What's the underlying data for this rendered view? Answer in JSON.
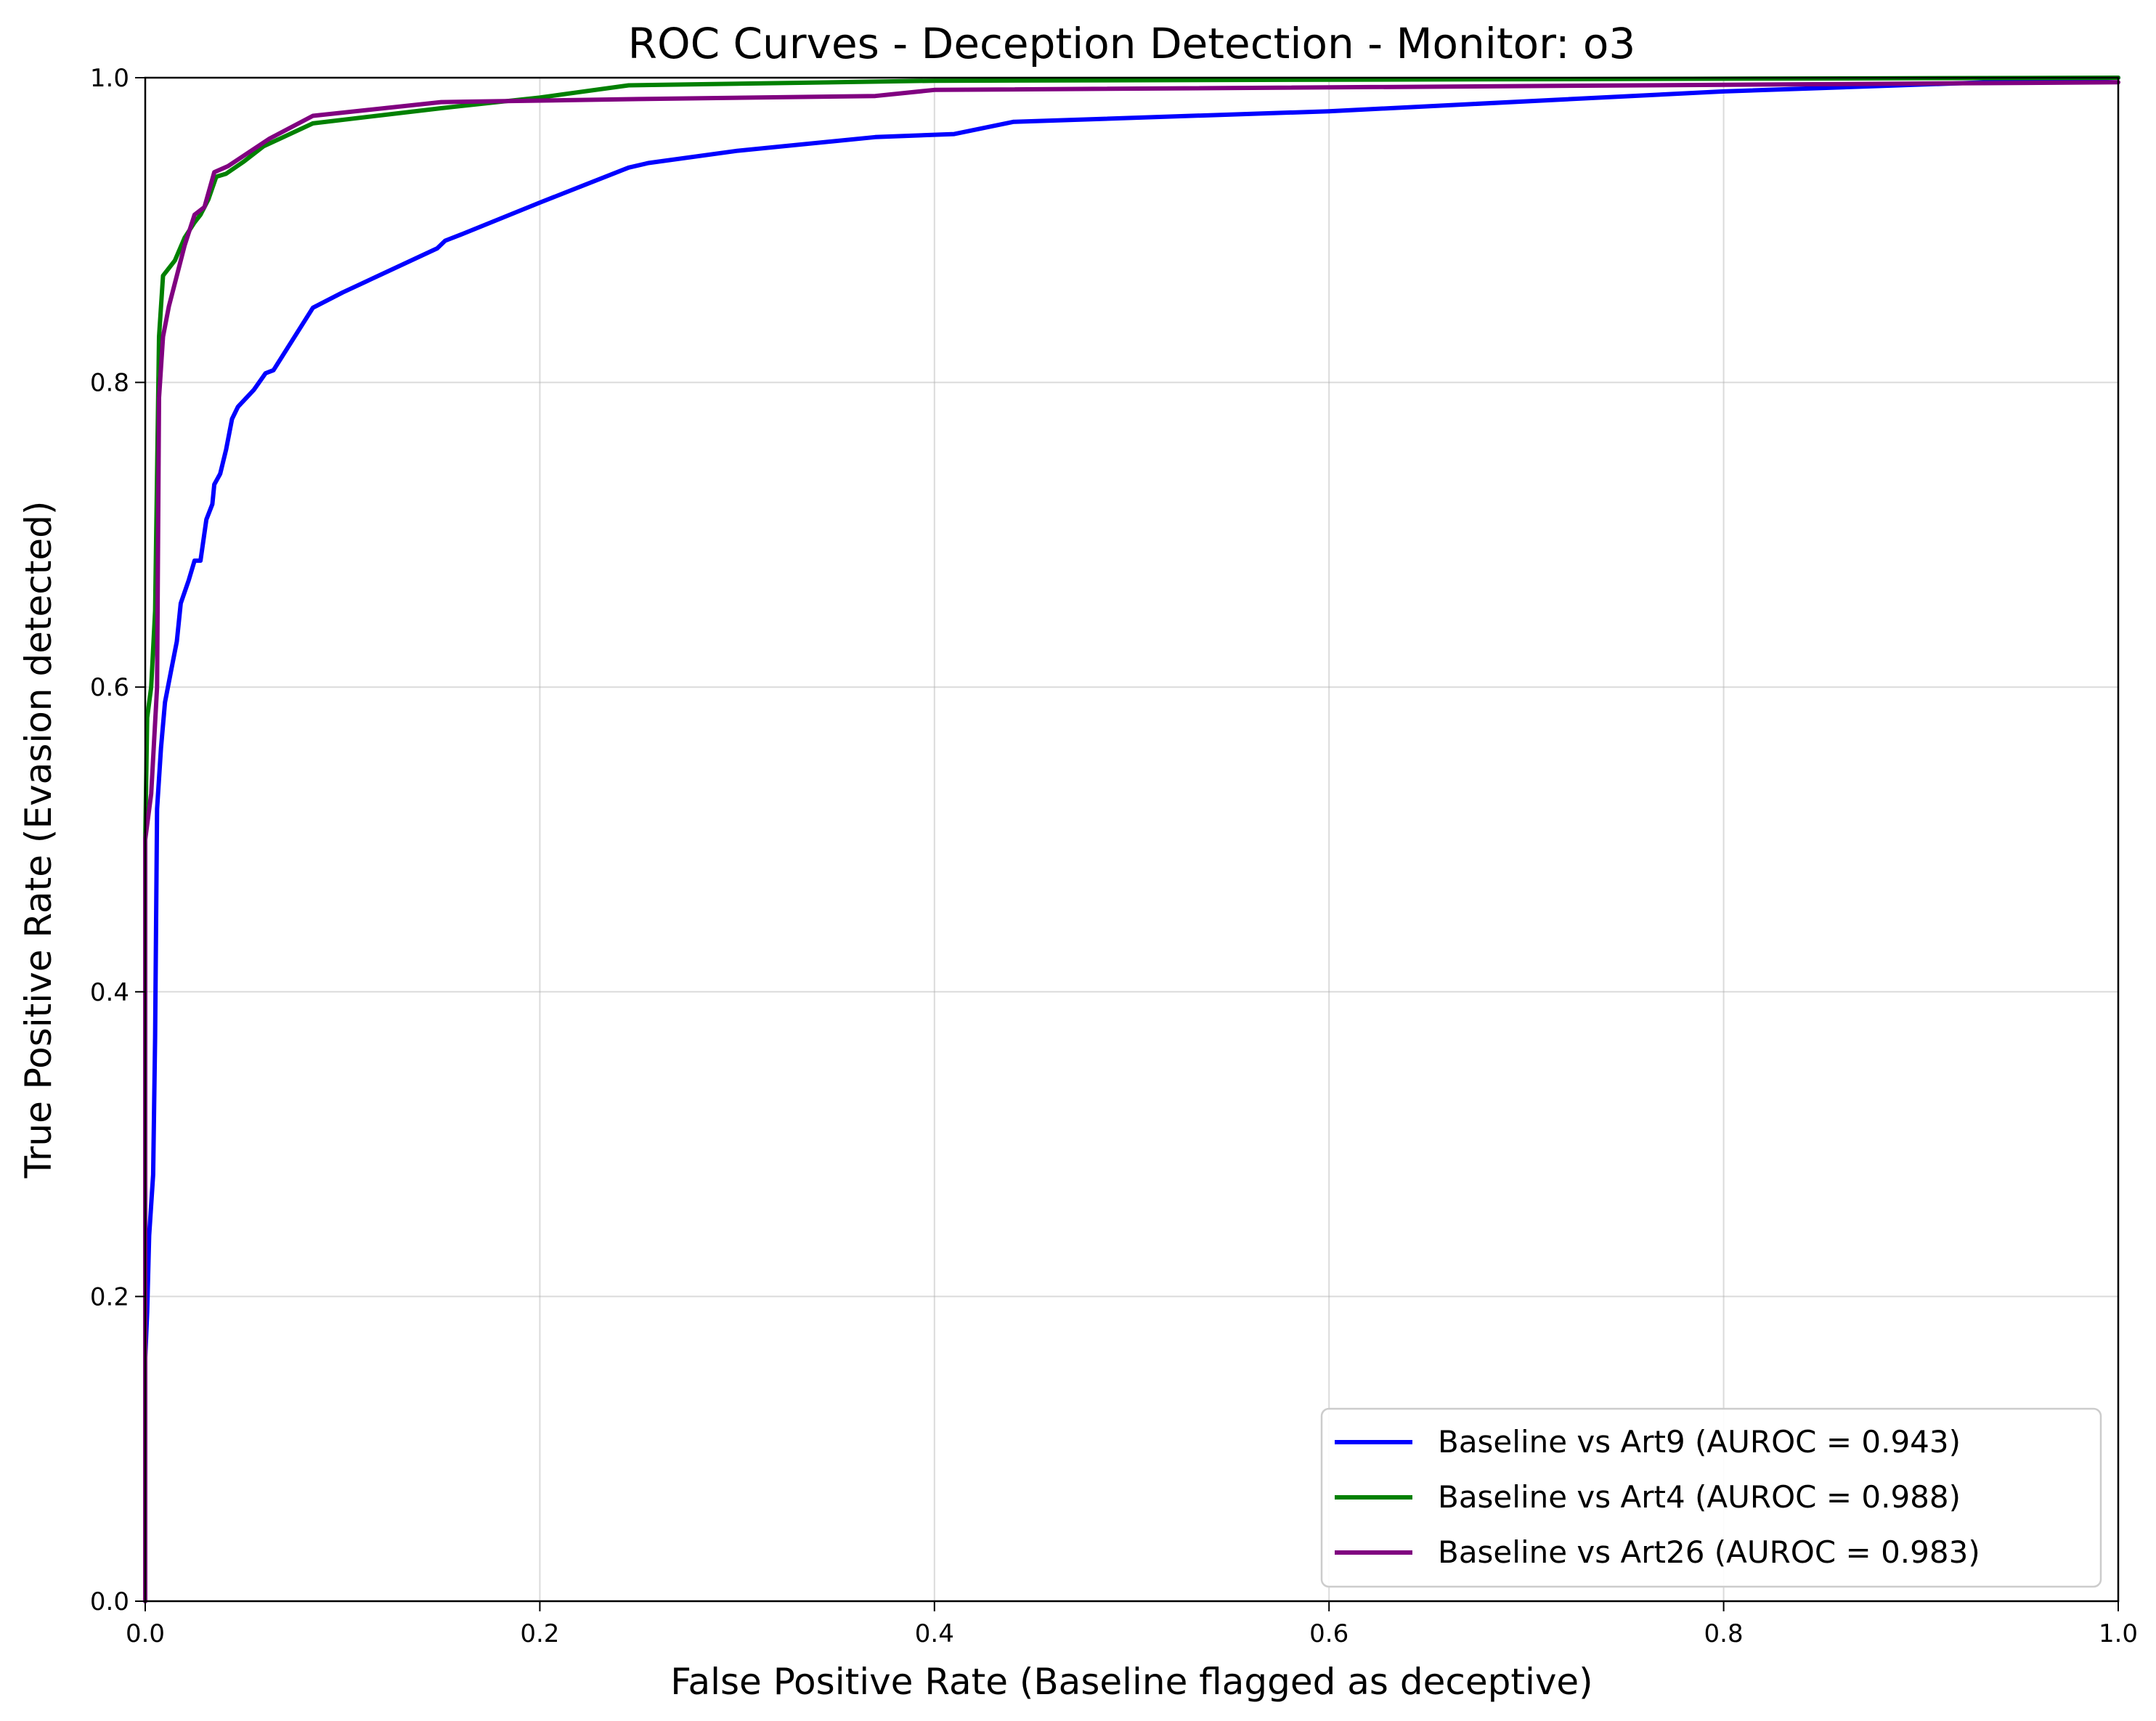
{
  "chart_data": {
    "type": "line",
    "title": "ROC Curves - Deception Detection - Monitor: o3",
    "xlabel": "False Positive Rate (Baseline flagged as deceptive)",
    "ylabel": "True Positive Rate (Evasion detected)",
    "xlim": [
      0,
      1
    ],
    "ylim": [
      0,
      1
    ],
    "x_ticks": [
      "0.0",
      "0.2",
      "0.4",
      "0.6",
      "0.8",
      "1.0"
    ],
    "y_ticks": [
      "0.0",
      "0.2",
      "0.4",
      "0.6",
      "0.8",
      "1.0"
    ],
    "grid": true,
    "legend_position": "lower-right",
    "series": [
      {
        "name": "Baseline vs Art9 (AUROC = 0.943)",
        "color": "#0000ff",
        "points": [
          [
            0.0,
            0.0
          ],
          [
            0.0,
            0.16
          ],
          [
            0.001,
            0.19
          ],
          [
            0.002,
            0.24
          ],
          [
            0.004,
            0.28
          ],
          [
            0.005,
            0.37
          ],
          [
            0.006,
            0.52
          ],
          [
            0.008,
            0.56
          ],
          [
            0.01,
            0.59
          ],
          [
            0.013,
            0.61
          ],
          [
            0.016,
            0.63
          ],
          [
            0.018,
            0.655
          ],
          [
            0.022,
            0.67
          ],
          [
            0.025,
            0.683
          ],
          [
            0.028,
            0.683
          ],
          [
            0.031,
            0.71
          ],
          [
            0.034,
            0.72
          ],
          [
            0.035,
            0.733
          ],
          [
            0.038,
            0.74
          ],
          [
            0.041,
            0.756
          ],
          [
            0.044,
            0.776
          ],
          [
            0.047,
            0.784
          ],
          [
            0.055,
            0.795
          ],
          [
            0.061,
            0.806
          ],
          [
            0.065,
            0.808
          ],
          [
            0.085,
            0.849
          ],
          [
            0.1,
            0.859
          ],
          [
            0.148,
            0.888
          ],
          [
            0.152,
            0.893
          ],
          [
            0.16,
            0.897
          ],
          [
            0.2,
            0.918
          ],
          [
            0.245,
            0.941
          ],
          [
            0.255,
            0.944
          ],
          [
            0.3,
            0.952
          ],
          [
            0.37,
            0.961
          ],
          [
            0.41,
            0.963
          ],
          [
            0.44,
            0.971
          ],
          [
            0.6,
            0.978
          ],
          [
            0.8,
            0.991
          ],
          [
            1.0,
            1.0
          ]
        ]
      },
      {
        "name": "Baseline vs Art4 (AUROC = 0.988)",
        "color": "#008000",
        "points": [
          [
            0.0,
            0.0
          ],
          [
            0.0,
            0.5
          ],
          [
            0.001,
            0.58
          ],
          [
            0.003,
            0.6
          ],
          [
            0.005,
            0.65
          ],
          [
            0.007,
            0.83
          ],
          [
            0.009,
            0.87
          ],
          [
            0.015,
            0.88
          ],
          [
            0.02,
            0.895
          ],
          [
            0.025,
            0.905
          ],
          [
            0.028,
            0.91
          ],
          [
            0.032,
            0.92
          ],
          [
            0.036,
            0.935
          ],
          [
            0.041,
            0.937
          ],
          [
            0.05,
            0.945
          ],
          [
            0.06,
            0.955
          ],
          [
            0.085,
            0.97
          ],
          [
            0.15,
            0.98
          ],
          [
            0.2,
            0.987
          ],
          [
            0.245,
            0.995
          ],
          [
            0.4,
            0.998
          ],
          [
            1.0,
            1.0
          ]
        ]
      },
      {
        "name": "Baseline vs Art26 (AUROC = 0.983)",
        "color": "#800080",
        "points": [
          [
            0.0,
            0.0
          ],
          [
            0.0,
            0.5
          ],
          [
            0.003,
            0.53
          ],
          [
            0.006,
            0.6
          ],
          [
            0.007,
            0.79
          ],
          [
            0.009,
            0.83
          ],
          [
            0.012,
            0.85
          ],
          [
            0.016,
            0.87
          ],
          [
            0.02,
            0.89
          ],
          [
            0.025,
            0.91
          ],
          [
            0.03,
            0.915
          ],
          [
            0.035,
            0.938
          ],
          [
            0.042,
            0.942
          ],
          [
            0.063,
            0.96
          ],
          [
            0.085,
            0.975
          ],
          [
            0.15,
            0.984
          ],
          [
            0.25,
            0.986
          ],
          [
            0.37,
            0.988
          ],
          [
            0.4,
            0.992
          ],
          [
            1.0,
            0.997
          ]
        ]
      }
    ]
  }
}
